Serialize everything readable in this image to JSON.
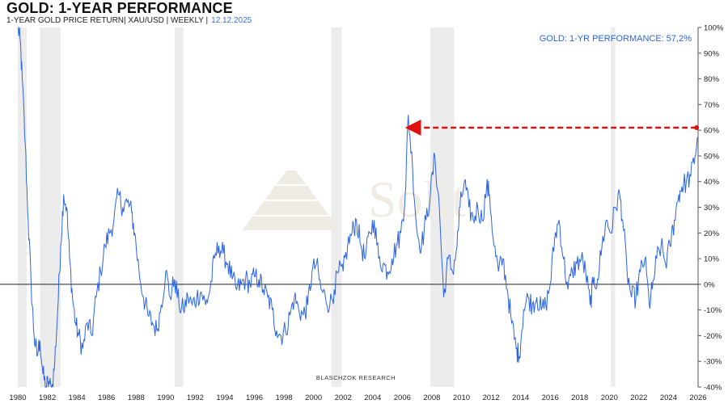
{
  "header": {
    "title": "GOLD: 1-YEAR PERFORMANCE",
    "subtitle": "1-YEAR GOLD PRICE RETURN| XAU/USD | WEEKLY |",
    "date": "12.12.2025"
  },
  "chart_data": {
    "type": "line",
    "title": "GOLD: 1-YEAR PERFORMANCE",
    "series_name": "1-Year Gold Price Return",
    "annotation": "GOLD: 1-YR PERFORMANCE: 57,2%",
    "credit": "BLASCHZOK RESEARCH",
    "watermark": "Solit",
    "xlim": [
      1980,
      2026
    ],
    "ylim": [
      -40,
      100
    ],
    "x_ticks": [
      "1980",
      "1982",
      "1984",
      "1986",
      "1988",
      "1990",
      "1992",
      "1994",
      "1996",
      "1998",
      "2000",
      "2002",
      "2004",
      "2006",
      "2008",
      "2010",
      "2012",
      "2014",
      "2016",
      "2018",
      "2020",
      "2022",
      "2024",
      "2026"
    ],
    "y_ticks": [
      "100%",
      "90%",
      "80%",
      "70%",
      "60%",
      "50%",
      "40%",
      "30%",
      "20%",
      "10%",
      "0%",
      "-10%",
      "-20%",
      "-30%",
      "-40%"
    ],
    "recession_bands": [
      [
        1980.0,
        1980.6
      ],
      [
        1981.5,
        1982.9
      ],
      [
        1990.6,
        1991.2
      ],
      [
        2001.2,
        2001.9
      ],
      [
        2007.9,
        2009.5
      ],
      [
        2020.1,
        2020.4
      ]
    ],
    "arrow": {
      "from_x": 2025.9,
      "to_x": 2006.4,
      "y": 61
    },
    "points": [
      [
        1980.0,
        100
      ],
      [
        1980.15,
        96
      ],
      [
        1980.3,
        80
      ],
      [
        1980.5,
        55
      ],
      [
        1980.7,
        25
      ],
      [
        1980.9,
        0
      ],
      [
        1981.1,
        -20
      ],
      [
        1981.3,
        -28
      ],
      [
        1981.5,
        -22
      ],
      [
        1981.7,
        -35
      ],
      [
        1981.9,
        -40
      ],
      [
        1982.1,
        -38
      ],
      [
        1982.3,
        -42
      ],
      [
        1982.5,
        -30
      ],
      [
        1982.7,
        -10
      ],
      [
        1982.9,
        15
      ],
      [
        1983.1,
        35
      ],
      [
        1983.3,
        30
      ],
      [
        1983.5,
        10
      ],
      [
        1983.7,
        -5
      ],
      [
        1983.9,
        -15
      ],
      [
        1984.1,
        -20
      ],
      [
        1984.4,
        -25
      ],
      [
        1984.7,
        -15
      ],
      [
        1985.0,
        -20
      ],
      [
        1985.3,
        -5
      ],
      [
        1985.6,
        5
      ],
      [
        1985.9,
        15
      ],
      [
        1986.2,
        20
      ],
      [
        1986.5,
        25
      ],
      [
        1986.8,
        35
      ],
      [
        1987.1,
        30
      ],
      [
        1987.4,
        32
      ],
      [
        1987.7,
        28
      ],
      [
        1987.9,
        20
      ],
      [
        1988.2,
        5
      ],
      [
        1988.5,
        -5
      ],
      [
        1988.8,
        -12
      ],
      [
        1989.1,
        -15
      ],
      [
        1989.4,
        -18
      ],
      [
        1989.7,
        -8
      ],
      [
        1990.0,
        5
      ],
      [
        1990.3,
        -5
      ],
      [
        1990.6,
        2
      ],
      [
        1990.9,
        -8
      ],
      [
        1991.2,
        -10
      ],
      [
        1991.5,
        -5
      ],
      [
        1991.8,
        -8
      ],
      [
        1992.1,
        -5
      ],
      [
        1992.4,
        -3
      ],
      [
        1992.7,
        -8
      ],
      [
        1993.0,
        -2
      ],
      [
        1993.3,
        10
      ],
      [
        1993.6,
        15
      ],
      [
        1993.9,
        12
      ],
      [
        1994.2,
        8
      ],
      [
        1994.5,
        2
      ],
      [
        1994.8,
        -2
      ],
      [
        1995.1,
        0
      ],
      [
        1995.4,
        2
      ],
      [
        1995.7,
        0
      ],
      [
        1996.0,
        3
      ],
      [
        1996.3,
        2
      ],
      [
        1996.6,
        -2
      ],
      [
        1996.9,
        -5
      ],
      [
        1997.2,
        -10
      ],
      [
        1997.5,
        -18
      ],
      [
        1997.8,
        -20
      ],
      [
        1998.1,
        -18
      ],
      [
        1998.4,
        -12
      ],
      [
        1998.7,
        -5
      ],
      [
        1999.0,
        -10
      ],
      [
        1999.3,
        -12
      ],
      [
        1999.6,
        -8
      ],
      [
        1999.9,
        5
      ],
      [
        2000.2,
        8
      ],
      [
        2000.5,
        -2
      ],
      [
        2000.8,
        -5
      ],
      [
        2001.1,
        -8
      ],
      [
        2001.4,
        -2
      ],
      [
        2001.7,
        5
      ],
      [
        2002.0,
        5
      ],
      [
        2002.3,
        15
      ],
      [
        2002.6,
        20
      ],
      [
        2002.9,
        25
      ],
      [
        2003.2,
        15
      ],
      [
        2003.5,
        10
      ],
      [
        2003.8,
        20
      ],
      [
        2004.1,
        25
      ],
      [
        2004.4,
        10
      ],
      [
        2004.7,
        8
      ],
      [
        2005.0,
        5
      ],
      [
        2005.3,
        10
      ],
      [
        2005.6,
        15
      ],
      [
        2005.9,
        20
      ],
      [
        2006.2,
        35
      ],
      [
        2006.4,
        66
      ],
      [
        2006.7,
        45
      ],
      [
        2007.0,
        20
      ],
      [
        2007.3,
        15
      ],
      [
        2007.6,
        25
      ],
      [
        2007.9,
        35
      ],
      [
        2008.2,
        50
      ],
      [
        2008.5,
        30
      ],
      [
        2008.8,
        -5
      ],
      [
        2009.1,
        10
      ],
      [
        2009.4,
        5
      ],
      [
        2009.7,
        15
      ],
      [
        2009.9,
        30
      ],
      [
        2010.2,
        40
      ],
      [
        2010.5,
        30
      ],
      [
        2010.8,
        25
      ],
      [
        2011.1,
        30
      ],
      [
        2011.4,
        25
      ],
      [
        2011.7,
        38
      ],
      [
        2011.9,
        35
      ],
      [
        2012.2,
        15
      ],
      [
        2012.5,
        5
      ],
      [
        2012.8,
        10
      ],
      [
        2013.1,
        -2
      ],
      [
        2013.4,
        -15
      ],
      [
        2013.7,
        -25
      ],
      [
        2013.9,
        -28
      ],
      [
        2014.2,
        -10
      ],
      [
        2014.5,
        -5
      ],
      [
        2014.8,
        -8
      ],
      [
        2015.1,
        -5
      ],
      [
        2015.4,
        -10
      ],
      [
        2015.7,
        -8
      ],
      [
        2016.0,
        0
      ],
      [
        2016.3,
        18
      ],
      [
        2016.6,
        25
      ],
      [
        2016.9,
        10
      ],
      [
        2017.2,
        -2
      ],
      [
        2017.5,
        5
      ],
      [
        2017.8,
        8
      ],
      [
        2018.1,
        10
      ],
      [
        2018.4,
        5
      ],
      [
        2018.7,
        -8
      ],
      [
        2018.9,
        0
      ],
      [
        2019.2,
        2
      ],
      [
        2019.5,
        15
      ],
      [
        2019.8,
        25
      ],
      [
        2020.1,
        20
      ],
      [
        2020.4,
        30
      ],
      [
        2020.7,
        35
      ],
      [
        2020.9,
        25
      ],
      [
        2021.2,
        5
      ],
      [
        2021.5,
        -5
      ],
      [
        2021.8,
        -5
      ],
      [
        2022.1,
        5
      ],
      [
        2022.4,
        10
      ],
      [
        2022.7,
        -8
      ],
      [
        2022.9,
        -2
      ],
      [
        2023.2,
        10
      ],
      [
        2023.5,
        15
      ],
      [
        2023.8,
        8
      ],
      [
        2024.1,
        15
      ],
      [
        2024.4,
        25
      ],
      [
        2024.7,
        35
      ],
      [
        2024.9,
        38
      ],
      [
        2025.2,
        40
      ],
      [
        2025.5,
        42
      ],
      [
        2025.8,
        50
      ],
      [
        2025.95,
        57.2
      ]
    ]
  }
}
